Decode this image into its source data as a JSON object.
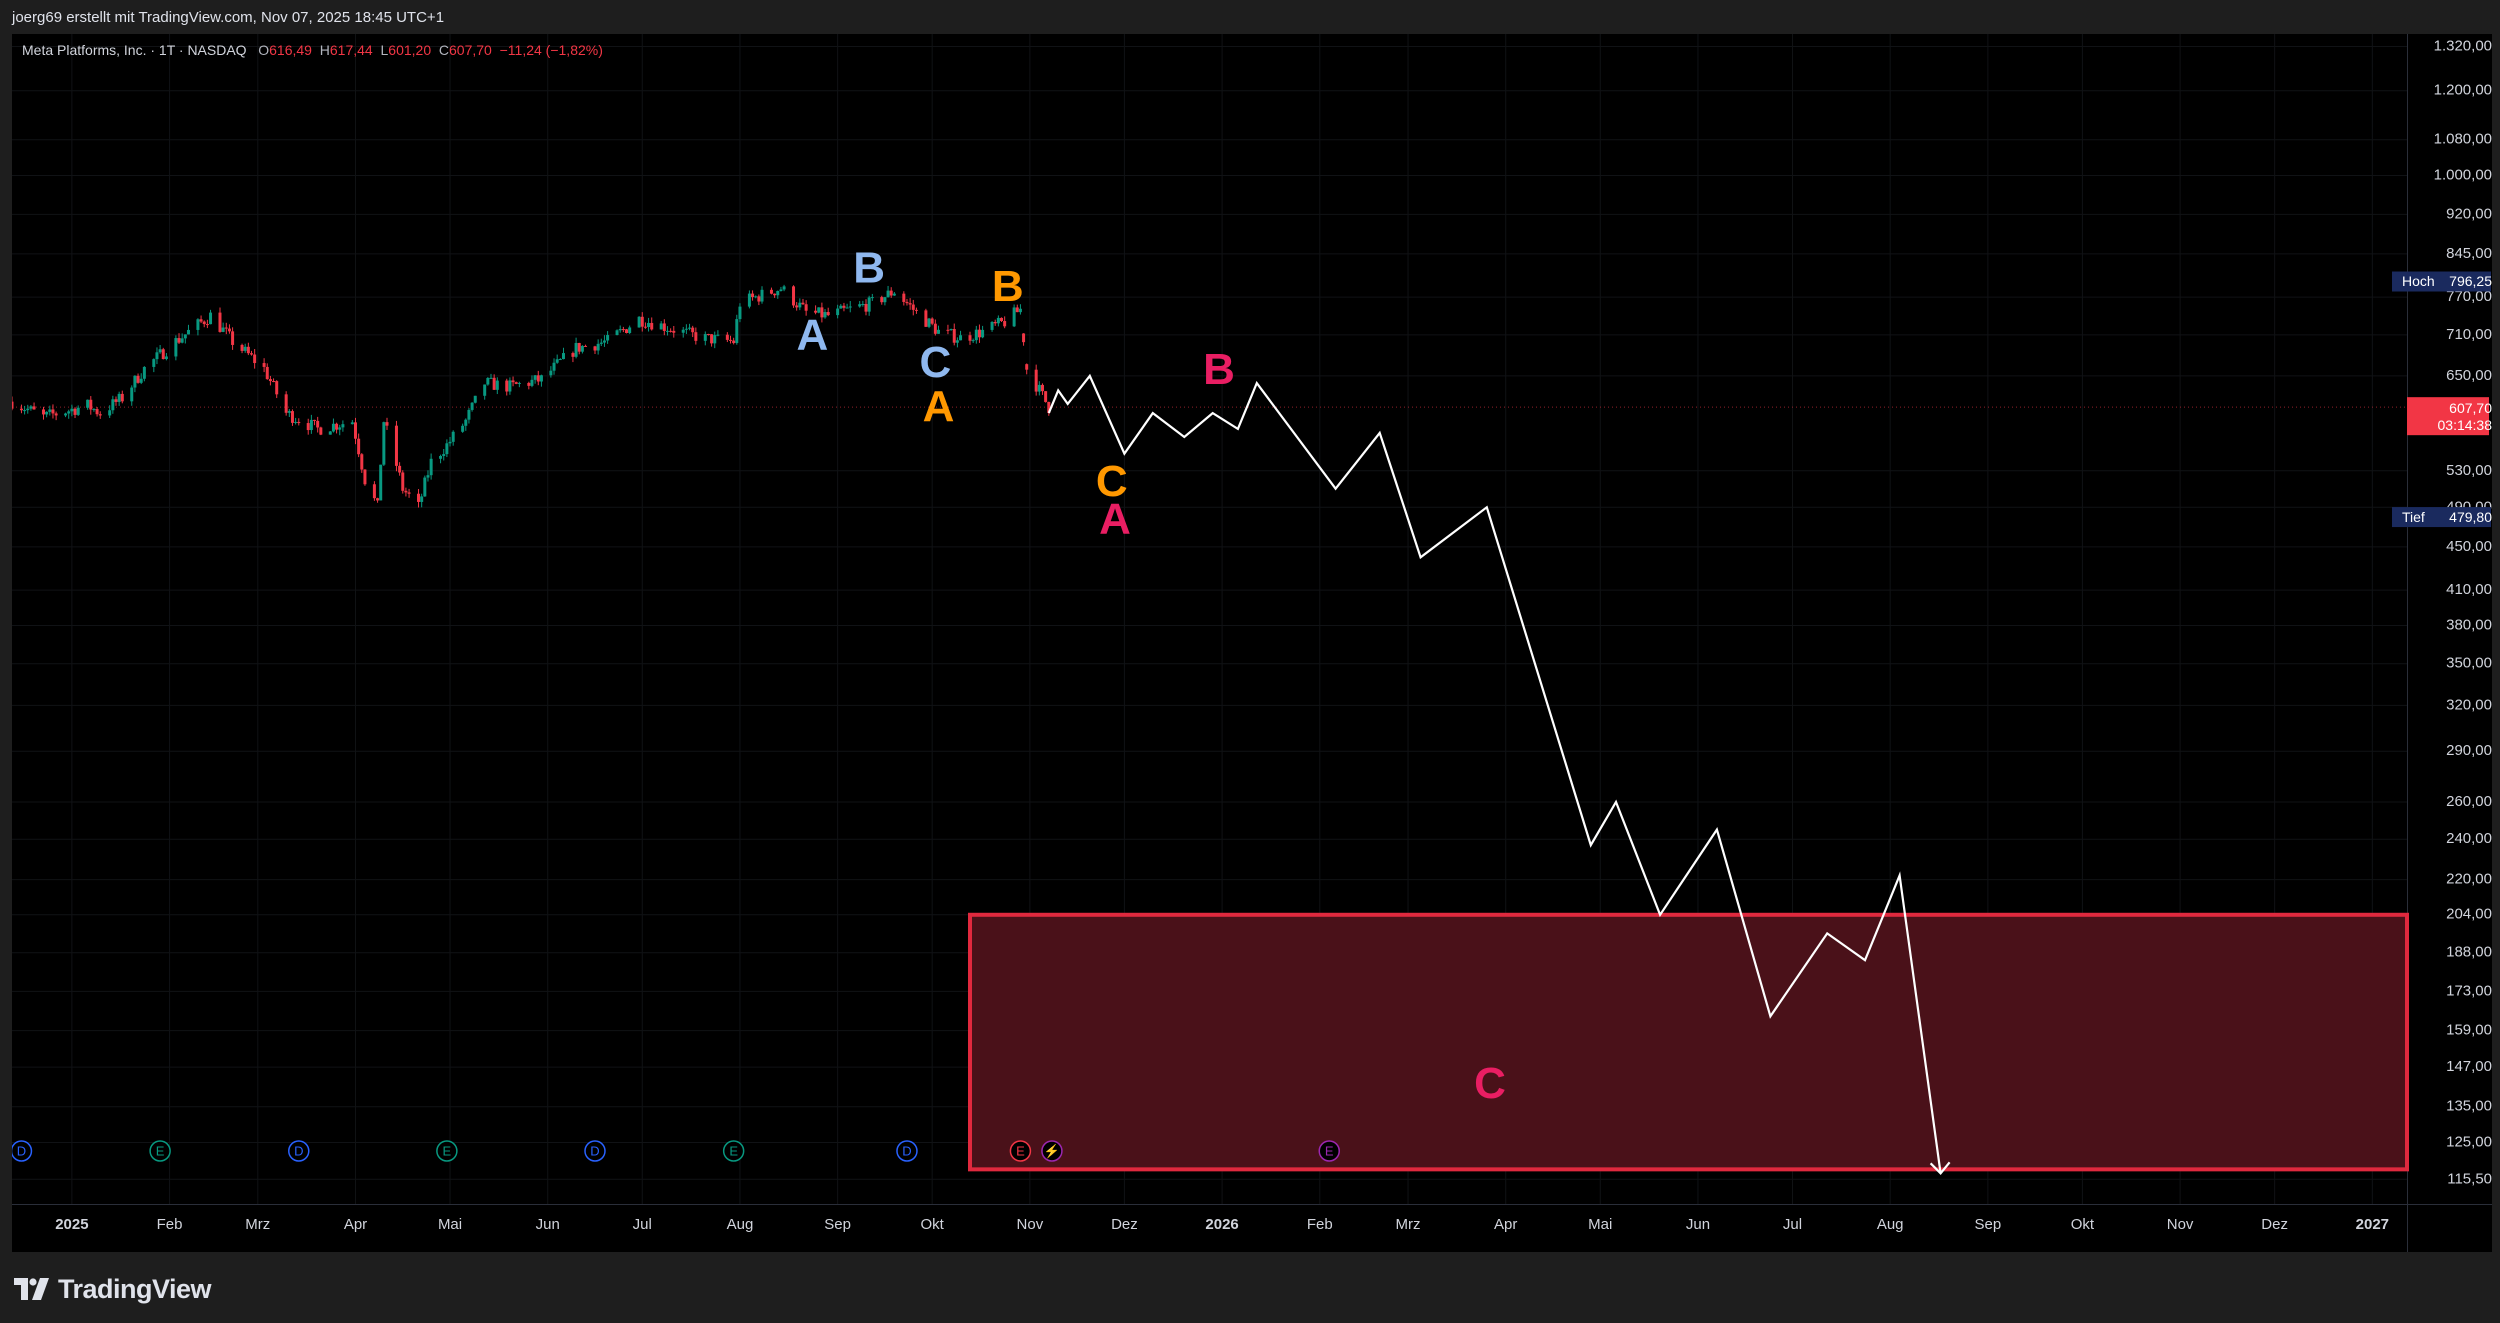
{
  "header": {
    "attribution": "joerg69 erstellt mit TradingView.com, Nov 07, 2025 18:45 UTC+1"
  },
  "legend": {
    "symbol": "Meta Platforms, Inc. · 1T · NASDAQ",
    "open_label": "O",
    "open": "616,49",
    "high_label": "H",
    "high": "617,44",
    "low_label": "L",
    "low": "601,20",
    "close_label": "C",
    "close": "607,70",
    "change": "−11,24 (−1,82%)"
  },
  "footer": {
    "brand": "TradingView"
  },
  "chart_data": {
    "type": "candlestick",
    "scale": "log",
    "ylim": [
      110,
      1350
    ],
    "y_ticks": [
      {
        "value": 115.5,
        "label": "115,50"
      },
      {
        "value": 125,
        "label": "125,00"
      },
      {
        "value": 135,
        "label": "135,00"
      },
      {
        "value": 147,
        "label": "147,00"
      },
      {
        "value": 159,
        "label": "159,00"
      },
      {
        "value": 173,
        "label": "173,00"
      },
      {
        "value": 188,
        "label": "188,00"
      },
      {
        "value": 204,
        "label": "204,00"
      },
      {
        "value": 220,
        "label": "220,00"
      },
      {
        "value": 240,
        "label": "240,00"
      },
      {
        "value": 260,
        "label": "260,00"
      },
      {
        "value": 290,
        "label": "290,00"
      },
      {
        "value": 320,
        "label": "320,00"
      },
      {
        "value": 350,
        "label": "350,00"
      },
      {
        "value": 380,
        "label": "380,00"
      },
      {
        "value": 410,
        "label": "410,00"
      },
      {
        "value": 450,
        "label": "450,00"
      },
      {
        "value": 490,
        "label": "490,00"
      },
      {
        "value": 530,
        "label": "530,00"
      },
      {
        "value": 650,
        "label": "650,00"
      },
      {
        "value": 710,
        "label": "710,00"
      },
      {
        "value": 770,
        "label": "770,00"
      },
      {
        "value": 845,
        "label": "845,00"
      },
      {
        "value": 920,
        "label": "920,00"
      },
      {
        "value": 1000,
        "label": "1.000,00"
      },
      {
        "value": 1080,
        "label": "1.080,00"
      },
      {
        "value": 1200,
        "label": "1.200,00"
      },
      {
        "value": 1320,
        "label": "1.320,00"
      }
    ],
    "x_range": [
      "2024-12-13",
      "2027-01-12"
    ],
    "x_ticks": [
      {
        "date": "2025-01-01",
        "label": "2025",
        "bold": true
      },
      {
        "date": "2025-02-01",
        "label": "Feb"
      },
      {
        "date": "2025-03-01",
        "label": "Mrz"
      },
      {
        "date": "2025-04-01",
        "label": "Apr"
      },
      {
        "date": "2025-05-01",
        "label": "Mai"
      },
      {
        "date": "2025-06-01",
        "label": "Jun"
      },
      {
        "date": "2025-07-01",
        "label": "Jul"
      },
      {
        "date": "2025-08-01",
        "label": "Aug"
      },
      {
        "date": "2025-09-01",
        "label": "Sep"
      },
      {
        "date": "2025-10-01",
        "label": "Okt"
      },
      {
        "date": "2025-11-01",
        "label": "Nov"
      },
      {
        "date": "2025-12-01",
        "label": "Dez"
      },
      {
        "date": "2026-01-01",
        "label": "2026",
        "bold": true
      },
      {
        "date": "2026-02-01",
        "label": "Feb"
      },
      {
        "date": "2026-03-01",
        "label": "Mrz"
      },
      {
        "date": "2026-04-01",
        "label": "Apr"
      },
      {
        "date": "2026-05-01",
        "label": "Mai"
      },
      {
        "date": "2026-06-01",
        "label": "Jun"
      },
      {
        "date": "2026-07-01",
        "label": "Jul"
      },
      {
        "date": "2026-08-01",
        "label": "Aug"
      },
      {
        "date": "2026-09-01",
        "label": "Sep"
      },
      {
        "date": "2026-10-01",
        "label": "Okt"
      },
      {
        "date": "2026-11-01",
        "label": "Nov"
      },
      {
        "date": "2026-12-01",
        "label": "Dez"
      },
      {
        "date": "2027-01-01",
        "label": "2027",
        "bold": true
      }
    ],
    "price_path": [
      [
        "2024-12-13",
        615
      ],
      [
        "2024-12-23",
        595
      ],
      [
        "2025-01-06",
        610
      ],
      [
        "2025-01-10",
        600
      ],
      [
        "2025-01-17",
        620
      ],
      [
        "2025-01-24",
        660
      ],
      [
        "2025-02-03",
        700
      ],
      [
        "2025-02-14",
        740
      ],
      [
        "2025-02-21",
        700
      ],
      [
        "2025-03-03",
        660
      ],
      [
        "2025-03-10",
        600
      ],
      [
        "2025-03-20",
        580
      ],
      [
        "2025-03-31",
        590
      ],
      [
        "2025-04-04",
        520
      ],
      [
        "2025-04-08",
        490
      ],
      [
        "2025-04-10",
        590
      ],
      [
        "2025-04-16",
        510
      ],
      [
        "2025-04-21",
        490
      ],
      [
        "2025-04-25",
        540
      ],
      [
        "2025-04-30",
        560
      ],
      [
        "2025-05-06",
        590
      ],
      [
        "2025-05-12",
        640
      ],
      [
        "2025-05-20",
        635
      ],
      [
        "2025-05-30",
        645
      ],
      [
        "2025-06-10",
        690
      ],
      [
        "2025-06-20",
        700
      ],
      [
        "2025-06-30",
        735
      ],
      [
        "2025-07-10",
        720
      ],
      [
        "2025-07-20",
        705
      ],
      [
        "2025-07-30",
        700
      ],
      [
        "2025-08-01",
        760
      ],
      [
        "2025-08-14",
        785
      ],
      [
        "2025-08-22",
        745
      ],
      [
        "2025-08-29",
        740
      ],
      [
        "2025-09-05",
        750
      ],
      [
        "2025-09-12",
        760
      ],
      [
        "2025-09-19",
        780
      ],
      [
        "2025-09-26",
        745
      ],
      [
        "2025-10-03",
        715
      ],
      [
        "2025-10-10",
        705
      ],
      [
        "2025-10-17",
        715
      ],
      [
        "2025-10-24",
        730
      ],
      [
        "2025-10-29",
        750
      ],
      [
        "2025-10-31",
        660
      ],
      [
        "2025-11-07",
        607.7
      ]
    ],
    "candles": {
      "up_color": "#089981",
      "down_color": "#f23645"
    },
    "projection": [
      [
        "2025-11-07",
        600
      ],
      [
        "2025-11-10",
        630
      ],
      [
        "2025-11-13",
        612
      ],
      [
        "2025-11-20",
        650
      ],
      [
        "2025-12-01",
        550
      ],
      [
        "2025-12-10",
        600
      ],
      [
        "2025-12-20",
        570
      ],
      [
        "2025-12-29",
        600
      ],
      [
        "2026-01-06",
        580
      ],
      [
        "2026-01-12",
        640
      ],
      [
        "2026-02-06",
        510
      ],
      [
        "2026-02-20",
        575
      ],
      [
        "2026-03-05",
        440
      ],
      [
        "2026-03-26",
        490
      ],
      [
        "2026-04-28",
        237
      ],
      [
        "2026-05-06",
        260
      ],
      [
        "2026-05-20",
        204
      ],
      [
        "2026-06-07",
        245
      ],
      [
        "2026-06-24",
        164
      ],
      [
        "2026-07-12",
        196
      ],
      [
        "2026-07-24",
        185
      ],
      [
        "2026-08-04",
        222
      ],
      [
        "2026-08-17",
        117
      ]
    ],
    "projection_color": "#ffffff",
    "wave_labels": [
      {
        "text": "A",
        "date": "2025-08-24",
        "value": 705,
        "color": "#8fb8ef"
      },
      {
        "text": "B",
        "date": "2025-09-11",
        "value": 815,
        "color": "#8fb8ef"
      },
      {
        "text": "C",
        "date": "2025-10-02",
        "value": 665,
        "color": "#8fb8ef"
      },
      {
        "text": "A",
        "date": "2025-10-03",
        "value": 605,
        "color": "#ff9800"
      },
      {
        "text": "B",
        "date": "2025-10-25",
        "value": 783,
        "color": "#ff9800"
      },
      {
        "text": "C",
        "date": "2025-11-27",
        "value": 515,
        "color": "#ff9800"
      },
      {
        "text": "A",
        "date": "2025-11-28",
        "value": 475,
        "color": "#e91e63"
      },
      {
        "text": "B",
        "date": "2025-12-31",
        "value": 655,
        "color": "#e91e63"
      },
      {
        "text": "C",
        "date": "2026-03-27",
        "value": 141,
        "color": "#e91e63"
      }
    ],
    "target_zone": {
      "from": "2025-10-13",
      "to": "2027-01-12",
      "top": 204,
      "bottom": 118,
      "fill": "#4a1119",
      "stroke": "#e0293e"
    },
    "reference_line": {
      "value": 607.7,
      "color": "#f23645"
    },
    "markers": [
      {
        "date": "2024-12-16",
        "label": "D",
        "color": "#2962ff"
      },
      {
        "date": "2025-01-29",
        "label": "E",
        "color": "#089981"
      },
      {
        "date": "2025-03-14",
        "label": "D",
        "color": "#2962ff"
      },
      {
        "date": "2025-04-30",
        "label": "E",
        "color": "#089981"
      },
      {
        "date": "2025-06-16",
        "label": "D",
        "color": "#2962ff"
      },
      {
        "date": "2025-07-30",
        "label": "E",
        "color": "#089981"
      },
      {
        "date": "2025-09-23",
        "label": "D",
        "color": "#2962ff"
      },
      {
        "date": "2025-10-29",
        "label": "E",
        "color": "#f23645"
      },
      {
        "date": "2025-11-08",
        "label": "⚡",
        "color": "#9c27b0"
      },
      {
        "date": "2026-02-04",
        "label": "E",
        "color": "#9c27b0"
      }
    ],
    "price_badges": [
      {
        "name": "high",
        "label": "Hoch",
        "price": 796.25,
        "price_text": "796,25",
        "bg": "#1a2a5e"
      },
      {
        "name": "low",
        "label": "Tief",
        "price": 479.8,
        "price_text": "479,80",
        "bg": "#1a2a5e"
      }
    ],
    "last_price": {
      "value": 607.7,
      "price_text": "607,70",
      "countdown": "03:14:38",
      "bg": "#f23645"
    }
  }
}
